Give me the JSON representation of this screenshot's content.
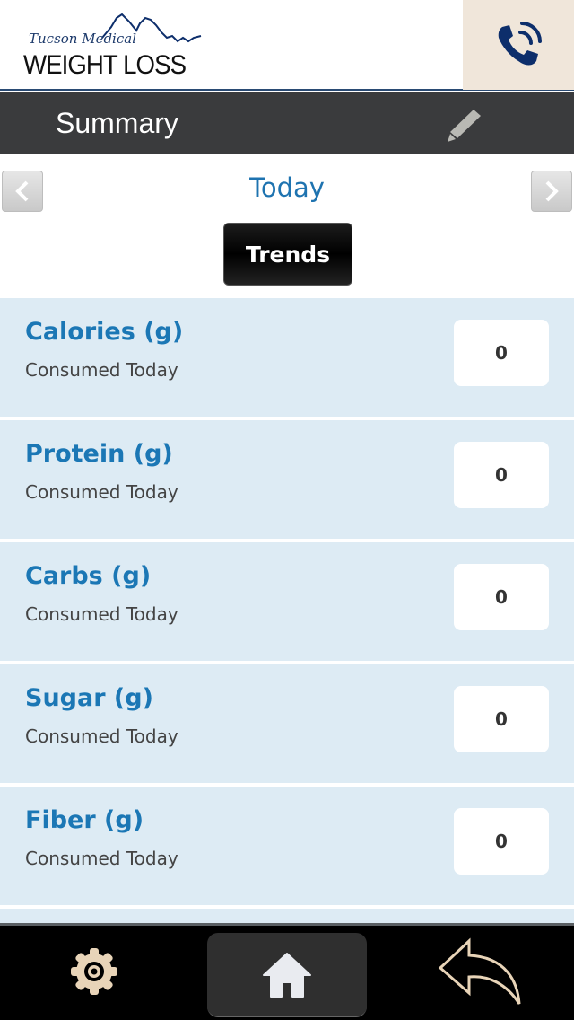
{
  "header": {
    "logo_script": "Tucson Medical",
    "logo_main": "WEIGHT LOSS",
    "phone_icon": "phone-icon",
    "accent": "#0d2e6b"
  },
  "titlebar": {
    "title": "Summary",
    "edit_icon": "pencil-icon"
  },
  "date_nav": {
    "label": "Today",
    "prev_icon": "chevron-left-icon",
    "next_icon": "chevron-right-icon"
  },
  "trends_label": "Trends",
  "nutrients": [
    {
      "name": "Calories (g)",
      "sub": "Consumed Today",
      "value": "0"
    },
    {
      "name": "Protein (g)",
      "sub": "Consumed Today",
      "value": "0"
    },
    {
      "name": "Carbs (g)",
      "sub": "Consumed Today",
      "value": "0"
    },
    {
      "name": "Sugar (g)",
      "sub": "Consumed Today",
      "value": "0"
    },
    {
      "name": "Fiber (g)",
      "sub": "Consumed Today",
      "value": "0"
    }
  ],
  "bottom_nav": {
    "settings_icon": "gear-icon",
    "home_icon": "home-icon",
    "back_icon": "back-arrow-icon"
  }
}
